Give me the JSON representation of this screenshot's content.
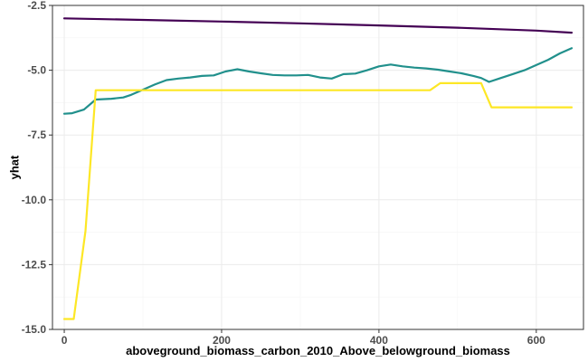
{
  "chart_data": {
    "type": "line",
    "title": "",
    "xlabel": "aboveground_biomass_carbon_2010_Above_belowground_biomass",
    "ylabel": "yhat",
    "xlim": [
      -15,
      660
    ],
    "ylim": [
      -15.0,
      -2.5
    ],
    "x_ticks": [
      0,
      200,
      400,
      600
    ],
    "x_tick_labels": [
      "0",
      "200",
      "400",
      "600"
    ],
    "y_ticks": [
      -15.0,
      -12.5,
      -10.0,
      -7.5,
      -5.0,
      -2.5
    ],
    "y_tick_labels": [
      "-15.0",
      "-12.5",
      "-10.0",
      "-7.5",
      "-5.0",
      "-2.5"
    ],
    "grid": true,
    "legend": "none",
    "series": [
      {
        "color": "#440154",
        "x": [
          0,
          100,
          200,
          300,
          400,
          500,
          600,
          645
        ],
        "y": [
          -3.0,
          -3.06,
          -3.12,
          -3.19,
          -3.27,
          -3.36,
          -3.47,
          -3.55
        ]
      },
      {
        "color": "#21908C",
        "x": [
          0,
          10,
          25,
          40,
          60,
          75,
          85,
          100,
          115,
          130,
          145,
          160,
          175,
          190,
          205,
          220,
          235,
          250,
          265,
          280,
          295,
          310,
          325,
          340,
          355,
          370,
          385,
          400,
          415,
          430,
          445,
          460,
          475,
          490,
          505,
          520,
          530,
          540,
          555,
          570,
          585,
          600,
          615,
          630,
          645
        ],
        "y": [
          -6.68,
          -6.66,
          -6.52,
          -6.13,
          -6.1,
          -6.05,
          -5.95,
          -5.75,
          -5.55,
          -5.38,
          -5.32,
          -5.28,
          -5.22,
          -5.2,
          -5.05,
          -4.96,
          -5.05,
          -5.12,
          -5.18,
          -5.2,
          -5.2,
          -5.18,
          -5.28,
          -5.32,
          -5.15,
          -5.13,
          -5.0,
          -4.85,
          -4.78,
          -4.85,
          -4.9,
          -4.93,
          -4.98,
          -5.05,
          -5.12,
          -5.22,
          -5.3,
          -5.45,
          -5.3,
          -5.15,
          -5.0,
          -4.8,
          -4.6,
          -4.35,
          -4.15
        ]
      },
      {
        "color": "#FDE725",
        "x": [
          0,
          12,
          27,
          40,
          100,
          200,
          300,
          400,
          465,
          478,
          520,
          530,
          543,
          600,
          645
        ],
        "y": [
          -14.6,
          -14.6,
          -11.2,
          -5.77,
          -5.77,
          -5.77,
          -5.77,
          -5.77,
          -5.77,
          -5.5,
          -5.5,
          -5.5,
          -6.43,
          -6.43,
          -6.43
        ]
      }
    ]
  }
}
